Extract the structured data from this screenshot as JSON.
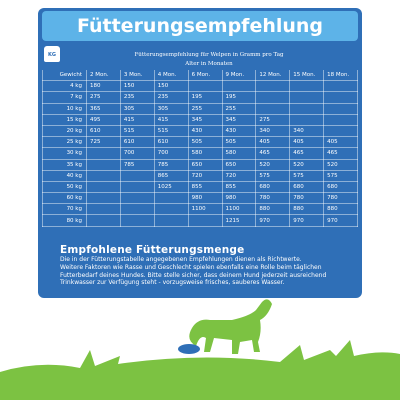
{
  "header": {
    "title": "Fütterungsempfehlung",
    "icon_label": "KG"
  },
  "table": {
    "caption": "Fütterungsempfehlung für Welpen in Gramm pro Tag",
    "group_header": "Alter in Monaten",
    "columns": [
      "Gewicht",
      "2 Mon.",
      "3 Mon.",
      "4 Mon.",
      "6 Mon.",
      "9 Mon.",
      "12 Mon.",
      "15 Mon.",
      "18 Mon."
    ],
    "rows": [
      [
        "4 kg",
        "180",
        "150",
        "150",
        null,
        null,
        null,
        null,
        null
      ],
      [
        "7 kg",
        "275",
        "235",
        "235",
        "195",
        "195",
        null,
        null,
        null
      ],
      [
        "10 kg",
        "365",
        "305",
        "305",
        "255",
        "255",
        null,
        null,
        null
      ],
      [
        "15 kg",
        "495",
        "415",
        "415",
        "345",
        "345",
        "275",
        null,
        null
      ],
      [
        "20 kg",
        "610",
        "515",
        "515",
        "430",
        "430",
        "340",
        "340",
        null
      ],
      [
        "25 kg",
        "725",
        "610",
        "610",
        "505",
        "505",
        "405",
        "405",
        "405"
      ],
      [
        "30 kg",
        null,
        "700",
        "700",
        "580",
        "580",
        "465",
        "465",
        "465"
      ],
      [
        "35 kg",
        null,
        "785",
        "785",
        "650",
        "650",
        "520",
        "520",
        "520"
      ],
      [
        "40 kg",
        null,
        null,
        "865",
        "720",
        "720",
        "575",
        "575",
        "575"
      ],
      [
        "50 kg",
        null,
        null,
        "1025",
        "855",
        "855",
        "680",
        "680",
        "680"
      ],
      [
        "60 kg",
        null,
        null,
        null,
        "980",
        "980",
        "780",
        "780",
        "780"
      ],
      [
        "70 kg",
        null,
        null,
        null,
        "1100",
        "1100",
        "880",
        "880",
        "880"
      ],
      [
        "80 kg",
        null,
        null,
        null,
        null,
        "1215",
        "970",
        "970",
        "970"
      ]
    ]
  },
  "notes": {
    "heading": "Empfohlene Fütterungsmenge",
    "lines": [
      "Die in der Fütterungstabelle angegebenen Empfehlungen dienen als Richtwerte.",
      "Weitere Faktoren wie Rasse und Geschlecht spielen ebenfalls eine Rolle beim täglichen",
      "Futterbedarf deines Hundes. Bitte stelle sicher, dass deinem Hund jederzeit ausreichend",
      "Trinkwasser zur Verfügung steht - vorzugsweise frisches, sauberes Wasser."
    ]
  }
}
